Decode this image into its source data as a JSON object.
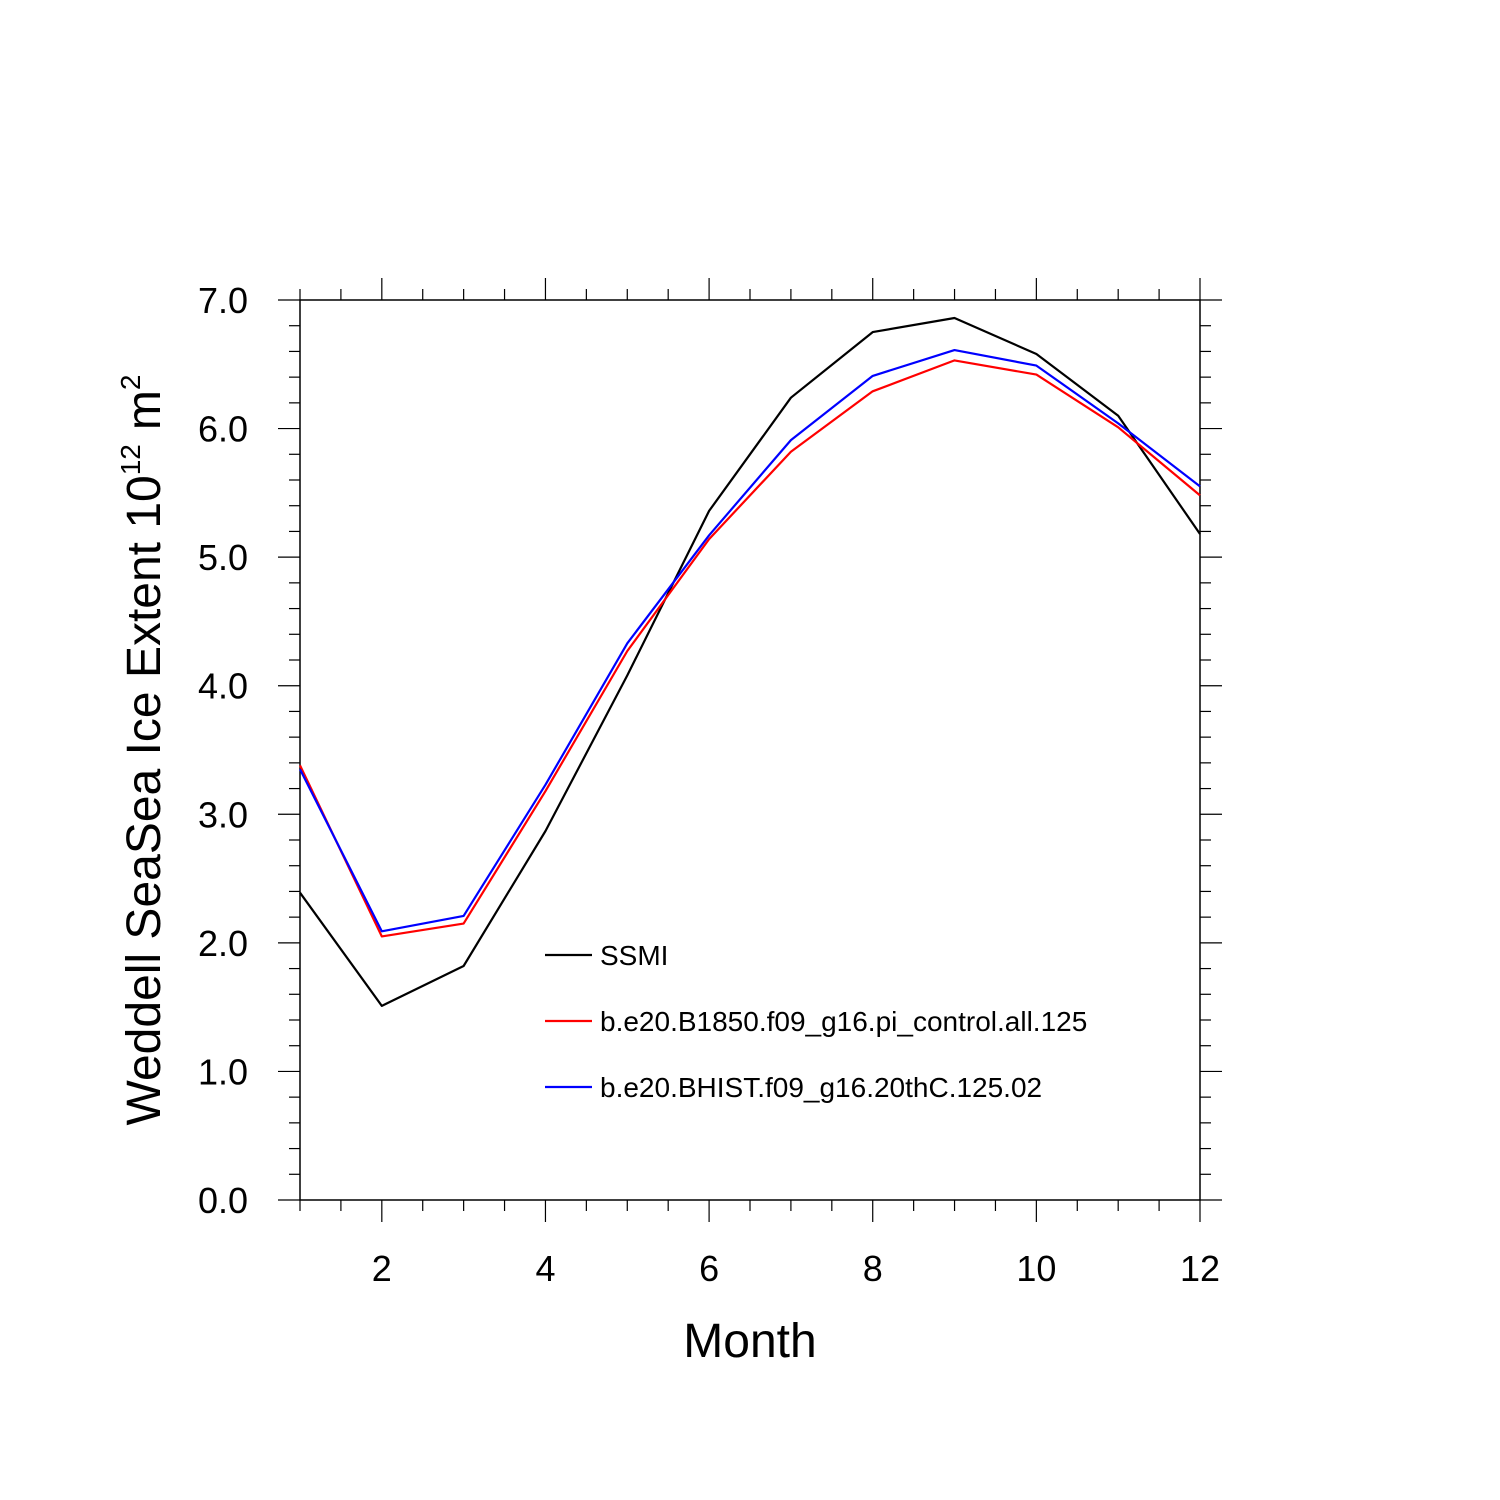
{
  "chart_data": {
    "type": "line",
    "xlabel": "Month",
    "ylabel": {
      "text": "Weddell SeaSea Ice Extent 10",
      "superscript": "12",
      "unit": "m",
      "unit_superscript": "2"
    },
    "xlim": [
      1,
      12
    ],
    "ylim": [
      0,
      7
    ],
    "x_ticks": [
      "2",
      "4",
      "6",
      "8",
      "10",
      "12"
    ],
    "x_tick_values": [
      2,
      4,
      6,
      8,
      10,
      12
    ],
    "y_ticks": [
      "0.0",
      "1.0",
      "2.0",
      "3.0",
      "4.0",
      "5.0",
      "6.0",
      "7.0"
    ],
    "y_tick_values": [
      0,
      1,
      2,
      3,
      4,
      5,
      6,
      7
    ],
    "x": [
      1,
      2,
      3,
      4,
      5,
      6,
      7,
      8,
      9,
      10,
      11,
      12
    ],
    "series": [
      {
        "name": "SSMI",
        "color": "#000000",
        "values": [
          2.39,
          1.51,
          1.82,
          2.87,
          4.08,
          5.36,
          6.24,
          6.75,
          6.86,
          6.58,
          6.1,
          5.18
        ]
      },
      {
        "name": "b.e20.B1850.f09_g16.pi_control.all.125",
        "color": "#ff0000",
        "values": [
          3.38,
          2.05,
          2.15,
          3.18,
          4.27,
          5.14,
          5.82,
          6.29,
          6.53,
          6.42,
          6.01,
          5.48
        ]
      },
      {
        "name": "b.e20.BHIST.f09_g16.20thC.125.02",
        "color": "#0000ff",
        "values": [
          3.35,
          2.09,
          2.21,
          3.23,
          4.33,
          5.17,
          5.91,
          6.41,
          6.61,
          6.49,
          6.04,
          5.55
        ]
      }
    ],
    "legend_placement": "center-bottom inside plot",
    "grid": false
  }
}
